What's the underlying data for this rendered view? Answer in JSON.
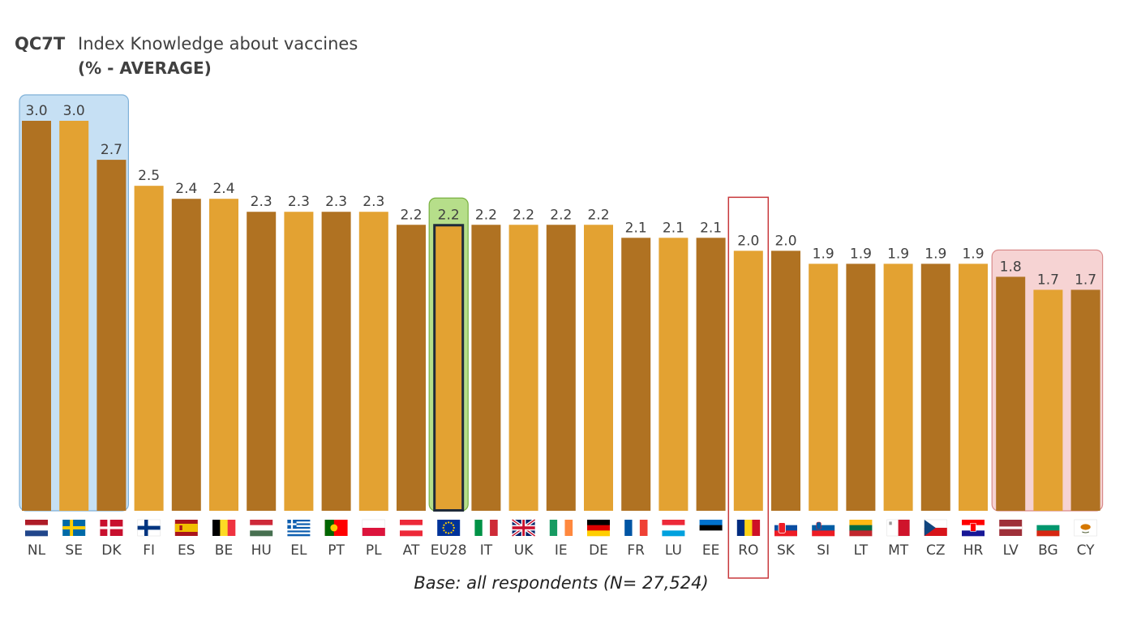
{
  "chart_data": {
    "type": "bar",
    "question_code": "QC7T",
    "title": "Index Knowledge about vaccines",
    "subtitle": "(% - AVERAGE)",
    "footnote": "Base: all respondents (N= 27,524)",
    "categories": [
      "NL",
      "SE",
      "DK",
      "FI",
      "ES",
      "BE",
      "HU",
      "EL",
      "PT",
      "PL",
      "AT",
      "EU28",
      "IT",
      "UK",
      "IE",
      "DE",
      "FR",
      "LU",
      "EE",
      "RO",
      "SK",
      "SI",
      "LT",
      "MT",
      "CZ",
      "HR",
      "LV",
      "BG",
      "CY"
    ],
    "values": [
      3.0,
      3.0,
      2.7,
      2.5,
      2.4,
      2.4,
      2.3,
      2.3,
      2.3,
      2.3,
      2.2,
      2.2,
      2.2,
      2.2,
      2.2,
      2.2,
      2.1,
      2.1,
      2.1,
      2.0,
      2.0,
      1.9,
      1.9,
      1.9,
      1.9,
      1.9,
      1.8,
      1.7,
      1.7
    ],
    "labels": [
      "3.0",
      "3.0",
      "2.7",
      "2.5",
      "2.4",
      "2.4",
      "2.3",
      "2.3",
      "2.3",
      "2.3",
      "2.2",
      "2.2",
      "2.2",
      "2.2",
      "2.2",
      "2.2",
      "2.1",
      "2.1",
      "2.1",
      "2.0",
      "2.0",
      "1.9",
      "1.9",
      "1.9",
      "1.9",
      "1.9",
      "1.8",
      "1.7",
      "1.7"
    ],
    "ylim": [
      0,
      3.0
    ],
    "grid": false,
    "colors": {
      "dark": "#B07222",
      "light": "#E3A232",
      "top_group_fill": "#C6E0F4",
      "top_group_border": "#7FB1D8",
      "eu_fill": "#B6DE8A",
      "eu_border": "#78B040",
      "bottom_group_fill": "#F6D3D3",
      "bottom_group_border": "#D98A8A",
      "highlight_border": "#C8383C"
    },
    "groups": {
      "top": [
        "NL",
        "SE",
        "DK"
      ],
      "average": "EU28",
      "bottom": [
        "LV",
        "BG",
        "CY"
      ],
      "highlighted": "RO"
    },
    "flags": [
      "flag-nl",
      "flag-se",
      "flag-dk",
      "flag-fi",
      "flag-es",
      "flag-be",
      "flag-hu",
      "flag-el",
      "flag-pt",
      "flag-pl",
      "flag-at",
      "flag-eu",
      "flag-it",
      "flag-uk",
      "flag-ie",
      "flag-de",
      "flag-fr",
      "flag-lu",
      "flag-ee",
      "flag-ro",
      "flag-sk",
      "flag-si",
      "flag-lt",
      "flag-mt",
      "flag-cz",
      "flag-hr",
      "flag-lv",
      "flag-bg",
      "flag-cy"
    ]
  }
}
